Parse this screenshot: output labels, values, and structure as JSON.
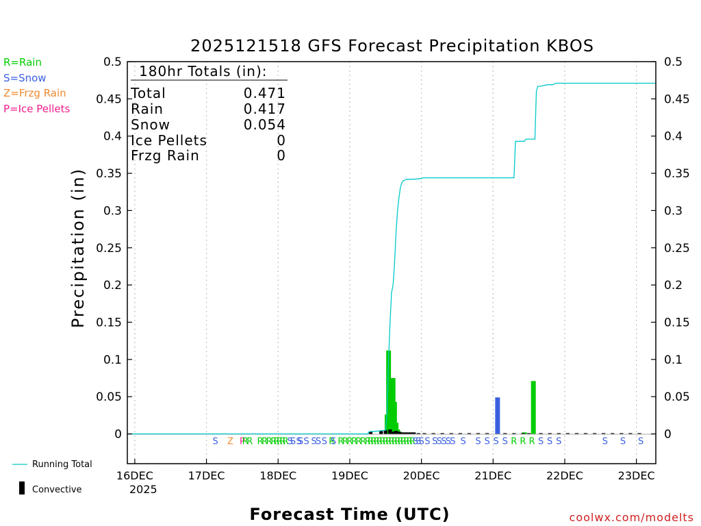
{
  "chart_data": {
    "type": "bar",
    "title": "2025121518 GFS Forecast Precipitation KBOS",
    "xlabel": "Forecast Time (UTC)",
    "ylabel": "Precipitation (in)",
    "ylim": [
      -0.04,
      0.5
    ],
    "yticks": [
      0,
      0.05,
      0.1,
      0.15,
      0.2,
      0.25,
      0.3,
      0.35,
      0.4,
      0.45,
      0.5
    ],
    "ytick_labels": [
      "0",
      "0.05",
      "0.1",
      "0.15",
      "0.2",
      "0.25",
      "0.3",
      "0.35",
      "0.4",
      "0.45",
      "0.5"
    ],
    "x_unit": "hours since 2025-12-16 00Z",
    "xlim": [
      -2.5,
      174.5
    ],
    "xticks": [
      0,
      24,
      48,
      72,
      96,
      120,
      144,
      168
    ],
    "xtick_labels": [
      "16DEC",
      "17DEC",
      "18DEC",
      "19DEC",
      "20DEC",
      "21DEC",
      "22DEC",
      "23DEC"
    ],
    "year_label": "2025",
    "totals_box": {
      "header": "180hr Totals (in):",
      "rows": [
        {
          "label": "Total",
          "value": "0.471"
        },
        {
          "label": "Rain",
          "value": "0.417"
        },
        {
          "label": "Snow",
          "value": "0.054"
        },
        {
          "label": "Ice Pellets",
          "value": "0"
        },
        {
          "label": "Frzg Rain",
          "value": "0"
        }
      ]
    },
    "type_legend": [
      {
        "label": "R=Rain",
        "color": "#00cc00"
      },
      {
        "label": "S=Snow",
        "color": "#3a5fe0"
      },
      {
        "label": "Z=Frzg Rain",
        "color": "#ee8a30"
      },
      {
        "label": "P=Ice Pellets",
        "color": "#ee1d8c"
      }
    ],
    "series_legend": [
      {
        "label": "Running Total",
        "color": "#00c8c8",
        "kind": "line"
      },
      {
        "label": "Convective",
        "color": "#000000",
        "kind": "bar"
      }
    ],
    "running_total": {
      "name": "Running Total",
      "color": "#00c8c8",
      "x": [
        -2.5,
        78,
        78.5,
        82,
        84,
        84.5,
        85,
        85.5,
        86,
        86.5,
        87,
        87.5,
        88,
        88.5,
        89,
        89.5,
        90,
        90.5,
        91,
        92,
        93,
        96,
        96.5,
        127,
        127.5,
        130.5,
        131,
        134,
        134.5,
        135,
        136,
        138,
        140,
        141,
        174.5
      ],
      "y": [
        0,
        0,
        0.003,
        0.004,
        0.005,
        0.03,
        0.1,
        0.15,
        0.19,
        0.2,
        0.23,
        0.27,
        0.3,
        0.318,
        0.332,
        0.338,
        0.34,
        0.341,
        0.342,
        0.342,
        0.342,
        0.343,
        0.344,
        0.344,
        0.393,
        0.393,
        0.396,
        0.396,
        0.46,
        0.467,
        0.467,
        0.469,
        0.469,
        0.471,
        0.471
      ]
    },
    "precip_bars": {
      "name": "Precipitation",
      "x": [
        84.5,
        85,
        85.5,
        86,
        86.5,
        87,
        87.5,
        88,
        88.5,
        89,
        121.5,
        130.5,
        133.5
      ],
      "values": [
        0.026,
        0.112,
        0.04,
        0.003,
        0.075,
        0.043,
        0.015,
        0.006,
        0.003,
        0.002,
        0.049,
        0.002,
        0.071
      ],
      "types": [
        "R",
        "R",
        "R",
        "R",
        "R",
        "R",
        "R",
        "R",
        "R",
        "R",
        "S",
        "R",
        "R"
      ]
    },
    "convective_bars": {
      "name": "Convective",
      "color": "#000000",
      "x": [
        79,
        82.5,
        84,
        85.5,
        86.5,
        87.5,
        88.5,
        89.5,
        90.5,
        91.5,
        92.5,
        93.5,
        95,
        97,
        100,
        103,
        106,
        109,
        112,
        115,
        118,
        124,
        127,
        130,
        132,
        136,
        139,
        142,
        145,
        148,
        151,
        154,
        157,
        160,
        163,
        166,
        169
      ],
      "values": [
        0.003,
        0.004,
        0.005,
        0.006,
        0.003,
        0.004,
        0.003,
        0.002,
        0.002,
        0.002,
        0.002,
        0.002,
        0.001,
        0.001,
        0.001,
        0.001,
        0.001,
        0.001,
        0.001,
        0.001,
        0.001,
        0.001,
        0.001,
        0.001,
        0.001,
        0.001,
        0.001,
        0.001,
        0.001,
        0.001,
        0.001,
        0.001,
        0.001,
        0.001,
        0.001,
        0.001,
        0.001
      ]
    },
    "type_markers": {
      "y": -0.009,
      "x": [
        27,
        32,
        36,
        37,
        38.5,
        42,
        43.5,
        45,
        46.5,
        47.5,
        48.5,
        49.5,
        50.5,
        52,
        53,
        55,
        55.5,
        57.5,
        60,
        61.5,
        63.5,
        66,
        66.5,
        69,
        70.5,
        72,
        73.5,
        75,
        76.5,
        78,
        79,
        80,
        81,
        82,
        83,
        84,
        85,
        86,
        87,
        88,
        89,
        90,
        91,
        92,
        93,
        94,
        95,
        96,
        98,
        100.5,
        102,
        103.5,
        105,
        106.5,
        110,
        115,
        118,
        121,
        124,
        127,
        130,
        133,
        136,
        139,
        142,
        157.5,
        163.5,
        169.5
      ],
      "labels": [
        "S",
        "Z",
        "P",
        "R",
        "R",
        "R",
        "R",
        "R",
        "R",
        "R",
        "R",
        "R",
        "R",
        "S",
        "S",
        "S",
        "S",
        "S",
        "S",
        "S",
        "S",
        "R",
        "S",
        "R",
        "R",
        "R",
        "R",
        "R",
        "R",
        "R",
        "R",
        "R",
        "R",
        "R",
        "R",
        "R",
        "R",
        "R",
        "R",
        "R",
        "R",
        "R",
        "R",
        "R",
        "R",
        "S",
        "S",
        "S",
        "S",
        "S",
        "S",
        "S",
        "S",
        "S",
        "S",
        "S",
        "S",
        "S",
        "S",
        "R",
        "R",
        "R",
        "S",
        "S",
        "S",
        "S",
        "S",
        "S"
      ]
    },
    "grid": {
      "vertical": "dotted",
      "horizontal": "none"
    },
    "watermark": "coolwx.com/modelts"
  }
}
